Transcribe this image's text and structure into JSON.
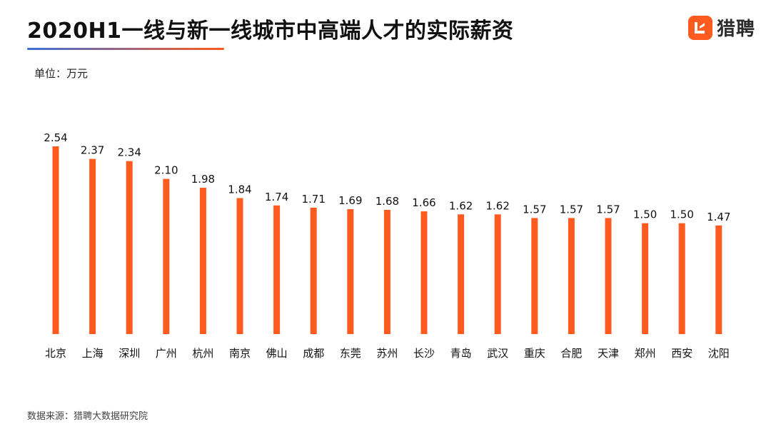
{
  "header": {
    "title": "2020H1一线与新一线城市中高端人才的实际薪资",
    "brand_name": "猎聘",
    "brand_color": "#ff5a1f"
  },
  "unit_label": "单位：万元",
  "source_label": "数据来源：猎聘大数据研究院",
  "colors": {
    "bar": "#ff5a1f",
    "underline_start": "#3b6fd8",
    "underline_end": "#ff5a1f"
  },
  "chart_data": {
    "type": "bar",
    "title": "2020H1一线与新一线城市中高端人才的实际薪资",
    "ylabel": "单位：万元",
    "xlabel": "",
    "ylim": [
      0,
      2.6
    ],
    "grid": false,
    "categories": [
      "北京",
      "上海",
      "深圳",
      "广州",
      "杭州",
      "南京",
      "佛山",
      "成都",
      "东莞",
      "苏州",
      "长沙",
      "青岛",
      "武汉",
      "重庆",
      "合肥",
      "天津",
      "郑州",
      "西安",
      "沈阳"
    ],
    "values": [
      2.54,
      2.37,
      2.34,
      2.1,
      1.98,
      1.84,
      1.74,
      1.71,
      1.69,
      1.68,
      1.66,
      1.62,
      1.62,
      1.57,
      1.57,
      1.57,
      1.5,
      1.5,
      1.47
    ],
    "value_labels": [
      "2.54",
      "2.37",
      "2.34",
      "2.10",
      "1.98",
      "1.84",
      "1.74",
      "1.71",
      "1.69",
      "1.68",
      "1.66",
      "1.62",
      "1.62",
      "1.57",
      "1.57",
      "1.57",
      "1.50",
      "1.50",
      "1.47"
    ]
  }
}
